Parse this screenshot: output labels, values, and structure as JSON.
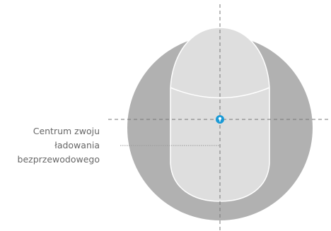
{
  "callout": {
    "lines": [
      "Centrum zwoju",
      "ładowania",
      "bezprzewodowego"
    ]
  },
  "colors": {
    "device_back": "#b1b1b1",
    "phone_body": "#dedede",
    "phone_outline": "#ffffff",
    "axis_lines": "#777777",
    "leader_line": "#9a9a9a",
    "coil_marker": "#1a9ad6",
    "label_text": "#666666"
  },
  "icons": {
    "coil_marker": "location-pin-icon"
  }
}
